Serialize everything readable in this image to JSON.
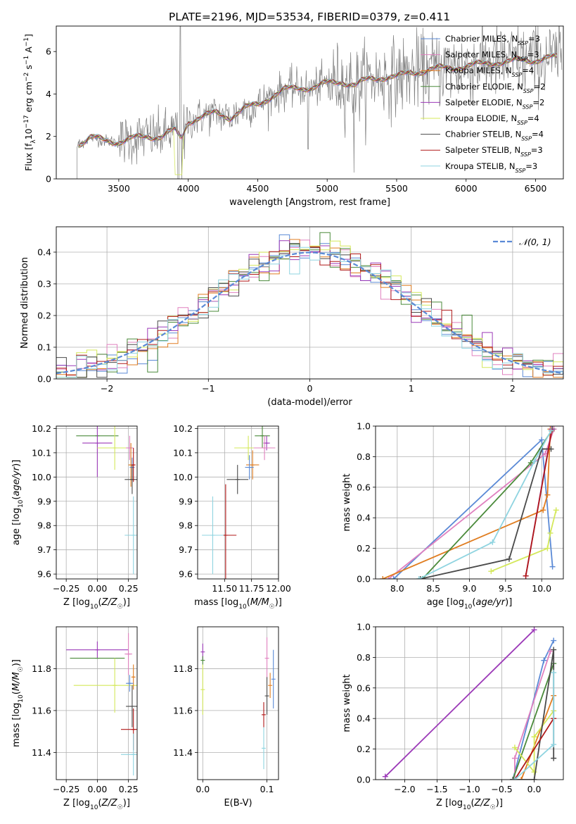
{
  "title": "PLATE=2196, MJD=53534, FIBERID=0379, z=0.411",
  "colors": {
    "Chabrier MILES": "#5b8ad6",
    "Salpeter MILES": "#e080bf",
    "Kroupa MILES": "#e07d20",
    "Chabrier ELODIE": "#4a8a3a",
    "Salpeter ELODIE": "#9c3ab8",
    "Kroupa ELODIE": "#d4e85a",
    "Chabrier STELIB": "#4a4a4a",
    "Salpeter STELIB": "#b01818",
    "Kroupa STELIB": "#8fd4e0",
    "data": "#808080",
    "normal": "#5b8ad6"
  },
  "chart_data": [
    {
      "type": "line",
      "xlabel": "wavelength [Angstrom, rest frame]",
      "ylabel": "Flux [f_λ 10^-17 erg cm^-2 s^-1 A^-1]",
      "xlim": [
        3050,
        6700
      ],
      "ylim": [
        0,
        7.2
      ],
      "xticks": [
        3500,
        4000,
        4500,
        5000,
        5500,
        6000,
        6500
      ],
      "yticks": [
        0,
        2,
        4,
        6
      ],
      "legend_position": "upper-right",
      "legend": [
        {
          "model": "Chabrier MILES",
          "label": "Chabrier MILES, N",
          "sub": "SSP",
          "suffix": "=3"
        },
        {
          "model": "Salpeter MILES",
          "label": "Salpeter MILES, N",
          "sub": "SSP",
          "suffix": "=3"
        },
        {
          "model": "Kroupa MILES",
          "label": "Kroupa MILES, N",
          "sub": "SSP",
          "suffix": "=4"
        },
        {
          "model": "Chabrier ELODIE",
          "label": "Chabrier ELODIE, N",
          "sub": "SSP",
          "suffix": "=2"
        },
        {
          "model": "Salpeter ELODIE",
          "label": "Salpeter ELODIE, N",
          "sub": "SSP",
          "suffix": "=2"
        },
        {
          "model": "Kroupa ELODIE",
          "label": "Kroupa ELODIE, N",
          "sub": "SSP",
          "suffix": "=4"
        },
        {
          "model": "Chabrier STELIB",
          "label": "Chabrier STELIB, N",
          "sub": "SSP",
          "suffix": "=4"
        },
        {
          "model": "Salpeter STELIB",
          "label": "Salpeter STELIB, N",
          "sub": "SSP",
          "suffix": "=3"
        },
        {
          "model": "Kroupa STELIB",
          "label": "Kroupa STELIB, N",
          "sub": "SSP",
          "suffix": "=3"
        }
      ],
      "continuum": [
        [
          3200,
          1.6
        ],
        [
          3300,
          1.95
        ],
        [
          3400,
          1.8
        ],
        [
          3500,
          1.75
        ],
        [
          3600,
          1.9
        ],
        [
          3700,
          2.0
        ],
        [
          3800,
          2.0
        ],
        [
          3900,
          2.3
        ],
        [
          3950,
          1.9
        ],
        [
          4000,
          2.7
        ],
        [
          4100,
          2.95
        ],
        [
          4200,
          3.1
        ],
        [
          4300,
          2.9
        ],
        [
          4400,
          3.3
        ],
        [
          4500,
          3.5
        ],
        [
          4600,
          3.9
        ],
        [
          4700,
          4.2
        ],
        [
          4800,
          4.3
        ],
        [
          4900,
          4.3
        ],
        [
          5000,
          4.5
        ],
        [
          5100,
          4.6
        ],
        [
          5200,
          4.4
        ],
        [
          5300,
          4.7
        ],
        [
          5400,
          4.8
        ],
        [
          5500,
          4.8
        ],
        [
          5600,
          5.0
        ],
        [
          5700,
          5.1
        ],
        [
          5800,
          5.2
        ],
        [
          5900,
          5.25
        ],
        [
          6000,
          5.3
        ],
        [
          6100,
          5.4
        ],
        [
          6200,
          5.5
        ],
        [
          6300,
          5.5
        ],
        [
          6400,
          5.6
        ],
        [
          6500,
          5.6
        ],
        [
          6600,
          5.7
        ]
      ]
    },
    {
      "type": "histogram",
      "xlabel": "(data-model)/error",
      "ylabel": "Normed distribution",
      "xlim": [
        -2.5,
        2.5
      ],
      "ylim": [
        0,
        0.48
      ],
      "xticks": [
        -2,
        -1,
        0,
        1,
        2
      ],
      "yticks": [
        0.0,
        0.1,
        0.2,
        0.3,
        0.4
      ],
      "bin_width": 0.1,
      "legend_position": "upper-right",
      "normal_label": "𝒩(0, 1)"
    },
    {
      "type": "scatter",
      "xlabel": "Z [log10(Z/Z☉)]",
      "ylabel": "age [log10(age/yr)]",
      "xlim": [
        -0.33,
        0.32
      ],
      "ylim": [
        9.58,
        10.21
      ],
      "xticks": [
        -0.25,
        0.0,
        0.25
      ],
      "yticks": [
        9.6,
        9.7,
        9.8,
        9.9,
        10.0,
        10.1,
        10.2
      ],
      "points": [
        {
          "model": "Chabrier ELODIE",
          "x": 0.0,
          "y": 10.17,
          "xerr": 0.17,
          "yerr": 0.0
        },
        {
          "model": "Salpeter ELODIE",
          "x": 0.0,
          "y": 10.14,
          "xerr": 0.12,
          "yerr": 0.14
        },
        {
          "model": "Kroupa ELODIE",
          "x": 0.14,
          "y": 10.12,
          "xerr": 0.14,
          "yerr": 0.09
        },
        {
          "model": "Salpeter MILES",
          "x": 0.26,
          "y": 10.12,
          "xerr": 0.03,
          "yerr": 0.05
        },
        {
          "model": "Kroupa MILES",
          "x": 0.27,
          "y": 10.05,
          "xerr": 0.02,
          "yerr": 0.09
        },
        {
          "model": "Chabrier MILES",
          "x": 0.28,
          "y": 10.04,
          "xerr": 0.02,
          "yerr": 0.04
        },
        {
          "model": "Chabrier STELIB",
          "x": 0.28,
          "y": 9.99,
          "xerr": 0.06,
          "yerr": 0.06
        },
        {
          "model": "Salpeter STELIB",
          "x": 0.29,
          "y": 10.05,
          "xerr": 0.01,
          "yerr": 0.07
        },
        {
          "model": "Kroupa STELIB",
          "x": 0.29,
          "y": 9.76,
          "xerr": 0.07,
          "yerr": 0.16
        }
      ]
    },
    {
      "type": "scatter",
      "xlabel": "mass [log10(M/M☉)]",
      "ylabel": "",
      "xlim": [
        11.25,
        12.0
      ],
      "ylim": [
        9.58,
        10.21
      ],
      "xticks": [
        11.5,
        11.75,
        12.0
      ],
      "yticks": [
        9.6,
        9.7,
        9.8,
        9.9,
        10.0,
        10.1,
        10.2
      ],
      "points": [
        {
          "model": "Chabrier ELODIE",
          "x": 11.85,
          "y": 10.17,
          "xerr": 0.07,
          "yerr": 0.05
        },
        {
          "model": "Salpeter ELODIE",
          "x": 11.89,
          "y": 10.14,
          "xerr": 0.03,
          "yerr": 0.03
        },
        {
          "model": "Kroupa ELODIE",
          "x": 11.72,
          "y": 10.12,
          "xerr": 0.13,
          "yerr": 0.05
        },
        {
          "model": "Salpeter MILES",
          "x": 11.87,
          "y": 10.12,
          "xerr": 0.1,
          "yerr": 0.05
        },
        {
          "model": "Kroupa MILES",
          "x": 11.76,
          "y": 10.05,
          "xerr": 0.06,
          "yerr": 0.06
        },
        {
          "model": "Chabrier MILES",
          "x": 11.73,
          "y": 10.04,
          "xerr": 0.04,
          "yerr": 0.05
        },
        {
          "model": "Chabrier STELIB",
          "x": 11.62,
          "y": 9.99,
          "xerr": 0.1,
          "yerr": 0.06
        },
        {
          "model": "Salpeter STELIB",
          "x": 11.51,
          "y": 9.76,
          "xerr": 0.1,
          "yerr": 0.21
        },
        {
          "model": "Kroupa STELIB",
          "x": 11.39,
          "y": 9.76,
          "xerr": 0.1,
          "yerr": 0.16
        }
      ]
    },
    {
      "type": "line",
      "xlabel": "age [log10(age/yr)]",
      "ylabel": "mass weight",
      "xlim": [
        7.7,
        10.3
      ],
      "ylim": [
        0,
        1.0
      ],
      "xticks": [
        8.0,
        8.5,
        9.0,
        9.5,
        10.0
      ],
      "yticks": [
        0.0,
        0.2,
        0.4,
        0.6,
        0.8,
        1.0
      ],
      "series": [
        {
          "model": "Chabrier MILES",
          "points": [
            [
              7.95,
              0.0
            ],
            [
              10.0,
              0.91
            ],
            [
              10.15,
              0.08
            ]
          ]
        },
        {
          "model": "Salpeter MILES",
          "points": [
            [
              7.88,
              0.0
            ],
            [
              10.05,
              0.82
            ],
            [
              10.17,
              0.98
            ]
          ]
        },
        {
          "model": "Kroupa MILES",
          "points": [
            [
              7.8,
              0.0
            ],
            [
              10.02,
              0.45
            ],
            [
              10.08,
              0.55
            ],
            [
              10.12,
              0.98
            ]
          ]
        },
        {
          "model": "Chabrier ELODIE",
          "points": [
            [
              8.35,
              0.0
            ],
            [
              9.85,
              0.76
            ],
            [
              10.15,
              0.98
            ]
          ]
        },
        {
          "model": "Salpeter ELODIE",
          "points": [
            [
              9.78,
              0.02
            ],
            [
              10.14,
              0.98
            ]
          ]
        },
        {
          "model": "Kroupa ELODIE",
          "points": [
            [
              9.3,
              0.05
            ],
            [
              10.08,
              0.2
            ],
            [
              10.12,
              0.3
            ],
            [
              10.2,
              0.45
            ]
          ]
        },
        {
          "model": "Chabrier STELIB",
          "points": [
            [
              8.32,
              0.0
            ],
            [
              9.55,
              0.13
            ],
            [
              10.0,
              0.85
            ],
            [
              10.13,
              0.85
            ]
          ]
        },
        {
          "model": "Salpeter STELIB",
          "points": [
            [
              9.78,
              0.02
            ],
            [
              10.14,
              0.97
            ]
          ]
        },
        {
          "model": "Kroupa STELIB",
          "points": [
            [
              8.3,
              0.0
            ],
            [
              9.32,
              0.24
            ],
            [
              9.9,
              0.77
            ],
            [
              10.13,
              0.97
            ]
          ]
        }
      ]
    },
    {
      "type": "scatter",
      "xlabel": "Z [log10(Z/Z☉)]",
      "ylabel": "mass [log10(M/M☉)]",
      "xlim": [
        -0.33,
        0.32
      ],
      "ylim": [
        11.27,
        12.0
      ],
      "xticks": [
        -0.25,
        0.0,
        0.25
      ],
      "yticks": [
        11.4,
        11.6,
        11.8
      ],
      "points": [
        {
          "model": "Salpeter ELODIE",
          "x": 0.0,
          "y": 11.89,
          "xerr": 0.25,
          "yerr": 0.04
        },
        {
          "model": "Chabrier ELODIE",
          "x": 0.0,
          "y": 11.85,
          "xerr": 0.22,
          "yerr": 0.0
        },
        {
          "model": "Kroupa ELODIE",
          "x": 0.14,
          "y": 11.72,
          "xerr": 0.33,
          "yerr": 0.13
        },
        {
          "model": "Salpeter MILES",
          "x": 0.25,
          "y": 11.87,
          "xerr": 0.03,
          "yerr": 0.1
        },
        {
          "model": "Kroupa MILES",
          "x": 0.29,
          "y": 11.76,
          "xerr": 0.01,
          "yerr": 0.06
        },
        {
          "model": "Chabrier MILES",
          "x": 0.26,
          "y": 11.73,
          "xerr": 0.03,
          "yerr": 0.04
        },
        {
          "model": "Chabrier STELIB",
          "x": 0.28,
          "y": 11.62,
          "xerr": 0.05,
          "yerr": 0.1
        },
        {
          "model": "Salpeter STELIB",
          "x": 0.29,
          "y": 11.51,
          "xerr": 0.1,
          "yerr": 0.1
        },
        {
          "model": "Kroupa STELIB",
          "x": 0.29,
          "y": 11.39,
          "xerr": 0.1,
          "yerr": 0.1
        }
      ]
    },
    {
      "type": "scatter",
      "xlabel": "E(B-V)",
      "ylabel": "",
      "xlim": [
        -0.008,
        0.118
      ],
      "ylim": [
        11.27,
        12.0
      ],
      "xticks": [
        0.0,
        0.1
      ],
      "yticks": [
        11.4,
        11.6,
        11.8
      ],
      "points": [
        {
          "model": "Salpeter ELODIE",
          "x": 0.0,
          "y": 11.88,
          "xerr": 0.0,
          "yerr": 0.04
        },
        {
          "model": "Chabrier ELODIE",
          "x": 0.0,
          "y": 11.84,
          "xerr": 0.0,
          "yerr": 0.02
        },
        {
          "model": "Kroupa ELODIE",
          "x": 0.0,
          "y": 11.7,
          "xerr": 0.0,
          "yerr": 0.12
        },
        {
          "model": "Salpeter MILES",
          "x": 0.1,
          "y": 11.85,
          "xerr": 0.0,
          "yerr": 0.1
        },
        {
          "model": "Chabrier MILES",
          "x": 0.11,
          "y": 11.75,
          "xerr": 0.0,
          "yerr": 0.14
        },
        {
          "model": "Kroupa MILES",
          "x": 0.105,
          "y": 11.72,
          "xerr": 0.0,
          "yerr": 0.06
        },
        {
          "model": "Chabrier STELIB",
          "x": 0.1,
          "y": 11.67,
          "xerr": 0.0,
          "yerr": 0.09
        },
        {
          "model": "Salpeter STELIB",
          "x": 0.095,
          "y": 11.58,
          "xerr": 0.0,
          "yerr": 0.06
        },
        {
          "model": "Kroupa STELIB",
          "x": 0.095,
          "y": 11.42,
          "xerr": 0.0,
          "yerr": 0.1
        }
      ]
    },
    {
      "type": "line",
      "xlabel": "Z [log10(Z/Z☉)]",
      "ylabel": "mass weight",
      "xlim": [
        -2.45,
        0.45
      ],
      "ylim": [
        0,
        1.0
      ],
      "xticks": [
        -2.0,
        -1.5,
        -1.0,
        -0.5,
        0.0
      ],
      "yticks": [
        0.0,
        0.2,
        0.4,
        0.6,
        0.8,
        1.0
      ],
      "series": [
        {
          "model": "Chabrier MILES",
          "points": [
            [
              -0.33,
              0.0
            ],
            [
              0.15,
              0.78
            ],
            [
              0.3,
              0.91
            ]
          ]
        },
        {
          "model": "Salpeter MILES",
          "points": [
            [
              -0.3,
              0.0
            ],
            [
              -0.3,
              0.14
            ],
            [
              0.25,
              0.84
            ]
          ]
        },
        {
          "model": "Kroupa MILES",
          "points": [
            [
              -0.2,
              0.0
            ],
            [
              0.3,
              0.55
            ]
          ]
        },
        {
          "model": "Chabrier ELODIE",
          "points": [
            [
              -0.33,
              0.0
            ],
            [
              0.3,
              0.76
            ]
          ]
        },
        {
          "model": "Salpeter ELODIE",
          "points": [
            [
              -2.3,
              0.02
            ],
            [
              0.0,
              0.98
            ]
          ]
        },
        {
          "model": "Kroupa ELODIE",
          "points": [
            [
              -0.3,
              0.21
            ],
            [
              0.0,
              0.05
            ],
            [
              0.0,
              0.28
            ],
            [
              0.3,
              0.45
            ]
          ]
        },
        {
          "model": "Chabrier STELIB",
          "points": [
            [
              -0.33,
              0.0
            ],
            [
              0.0,
              0.0
            ],
            [
              0.3,
              0.85
            ],
            [
              0.3,
              0.14
            ]
          ]
        },
        {
          "model": "Salpeter STELIB",
          "points": [
            [
              -0.3,
              0.0
            ],
            [
              0.3,
              0.4
            ]
          ]
        },
        {
          "model": "Kroupa STELIB",
          "points": [
            [
              -0.3,
              0.0
            ],
            [
              0.3,
              0.23
            ],
            [
              0.3,
              0.7
            ]
          ]
        }
      ]
    }
  ]
}
